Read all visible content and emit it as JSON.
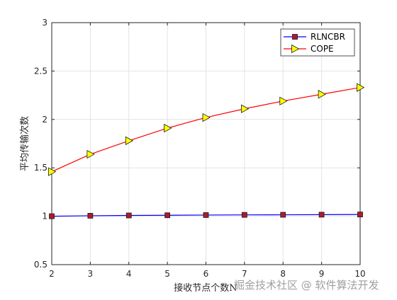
{
  "chart_data": {
    "type": "line",
    "xlabel": "接收节点个数N",
    "ylabel": "平均传输次数",
    "xlim": [
      2,
      10
    ],
    "ylim": [
      0.5,
      3
    ],
    "xticks": [
      "2",
      "3",
      "4",
      "5",
      "6",
      "7",
      "8",
      "9",
      "10"
    ],
    "yticks": [
      "0.5",
      "1",
      "1.5",
      "2",
      "2.5",
      "3"
    ],
    "grid": true,
    "legend_position": "top-right",
    "x": [
      2,
      3,
      4,
      5,
      6,
      7,
      8,
      9,
      10
    ],
    "series": [
      {
        "name": "RLNCBR",
        "color": "#0000ff",
        "marker": "square",
        "marker_fill": "#b01a2a",
        "values": [
          1.0,
          1.005,
          1.008,
          1.01,
          1.012,
          1.014,
          1.015,
          1.016,
          1.018
        ]
      },
      {
        "name": "COPE",
        "color": "#ff0000",
        "marker": "triangle-right",
        "marker_fill": "#ffff00",
        "values": [
          1.46,
          1.64,
          1.78,
          1.91,
          2.02,
          2.11,
          2.19,
          2.26,
          2.33
        ]
      }
    ]
  },
  "watermark": "掘金技术社区 @ 软件算法开发"
}
